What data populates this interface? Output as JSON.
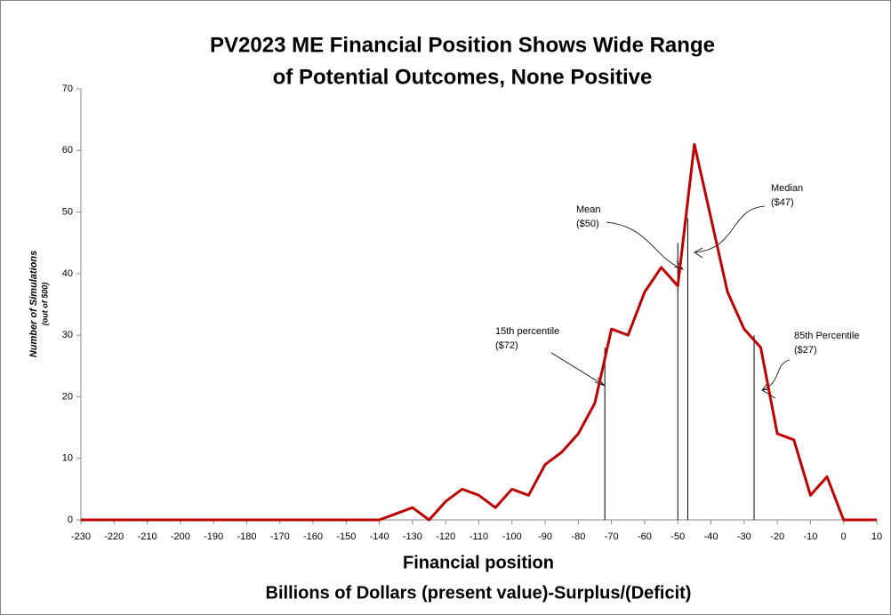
{
  "chart_data": {
    "type": "line",
    "title": [
      "PV2023 ME Financial Position Shows Wide Range",
      "of Potential Outcomes, None Positive"
    ],
    "y_label": [
      "Number of Simulations",
      "(out of 500)"
    ],
    "x_label": [
      "Financial position",
      "Billions of Dollars (present value)-Surplus/(Deficit)"
    ],
    "x": [
      -230,
      -225,
      -220,
      -215,
      -210,
      -205,
      -200,
      -195,
      -190,
      -185,
      -180,
      -175,
      -170,
      -165,
      -160,
      -155,
      -150,
      -145,
      -140,
      -135,
      -130,
      -125,
      -120,
      -115,
      -110,
      -105,
      -100,
      -95,
      -90,
      -85,
      -80,
      -75,
      -70,
      -65,
      -60,
      -55,
      -50,
      -45,
      -40,
      -35,
      -30,
      -25,
      -20,
      -15,
      -10,
      -5,
      0,
      5,
      10
    ],
    "series": [
      {
        "name": "Simulations",
        "color": "#c00000",
        "values": [
          0,
          0,
          0,
          0,
          0,
          0,
          0,
          0,
          0,
          0,
          0,
          0,
          0,
          0,
          0,
          0,
          0,
          0,
          0,
          1,
          2,
          0,
          3,
          5,
          4,
          2,
          5,
          4,
          9,
          11,
          14,
          19,
          31,
          30,
          37,
          41,
          38,
          61,
          49,
          37,
          31,
          28,
          14,
          13,
          4,
          7,
          0,
          0,
          0
        ]
      }
    ],
    "xlim": [
      -230,
      10
    ],
    "xticks": [
      -230,
      -220,
      -210,
      -200,
      -190,
      -180,
      -170,
      -160,
      -150,
      -140,
      -130,
      -120,
      -110,
      -100,
      -90,
      -80,
      -70,
      -60,
      -50,
      -40,
      -30,
      -20,
      -10,
      0,
      10
    ],
    "ylim": [
      0,
      70
    ],
    "yticks": [
      0,
      10,
      20,
      30,
      40,
      50,
      60,
      70
    ],
    "markers": [
      {
        "label": [
          "15th percentile",
          "($72)"
        ],
        "x": -72,
        "height": 28
      },
      {
        "label": [
          "Mean",
          "($50)"
        ],
        "x": -50,
        "height": 45
      },
      {
        "label": [
          "Median",
          "($47)"
        ],
        "x": -47,
        "height": 49
      },
      {
        "label": [
          "85th Percentile",
          "($27)"
        ],
        "x": -27,
        "height": 30
      }
    ]
  }
}
